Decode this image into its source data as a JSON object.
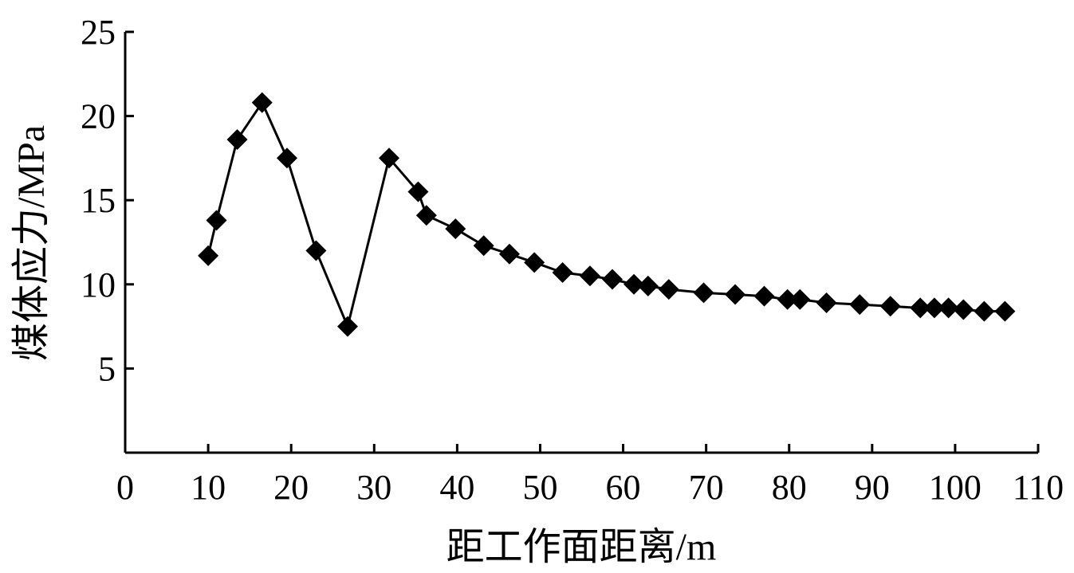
{
  "chart_data": {
    "type": "line",
    "title": "",
    "xlabel": "距工作面距离/m",
    "ylabel": "煤体应力/MPa",
    "xlim": [
      0,
      110
    ],
    "ylim": [
      0,
      25
    ],
    "x_ticks": [
      0,
      10,
      20,
      30,
      40,
      50,
      60,
      70,
      80,
      90,
      100,
      110
    ],
    "y_ticks": [
      5,
      10,
      15,
      20,
      25
    ],
    "grid": false,
    "marker": "diamond",
    "series": [
      {
        "x": [
          10,
          11,
          13.5,
          16.5,
          19.5,
          23,
          26.8,
          31.8,
          35.3,
          36.3,
          39.8,
          43.2,
          46.3,
          49.3,
          52.7,
          56,
          58.7,
          61.3,
          63,
          65.5,
          69.7,
          73.5,
          77,
          79.8,
          81.3,
          84.5,
          88.5,
          92.2,
          95.8,
          97.5,
          99.2,
          101,
          103.5,
          106
        ],
        "values": [
          11.7,
          13.8,
          18.6,
          20.8,
          17.5,
          12,
          7.5,
          17.5,
          15.5,
          14.1,
          13.3,
          12.3,
          11.8,
          11.3,
          10.7,
          10.5,
          10.3,
          10,
          9.9,
          9.7,
          9.5,
          9.4,
          9.3,
          9.1,
          9.1,
          8.9,
          8.8,
          8.7,
          8.6,
          8.6,
          8.6,
          8.5,
          8.4,
          8.4
        ]
      }
    ]
  }
}
